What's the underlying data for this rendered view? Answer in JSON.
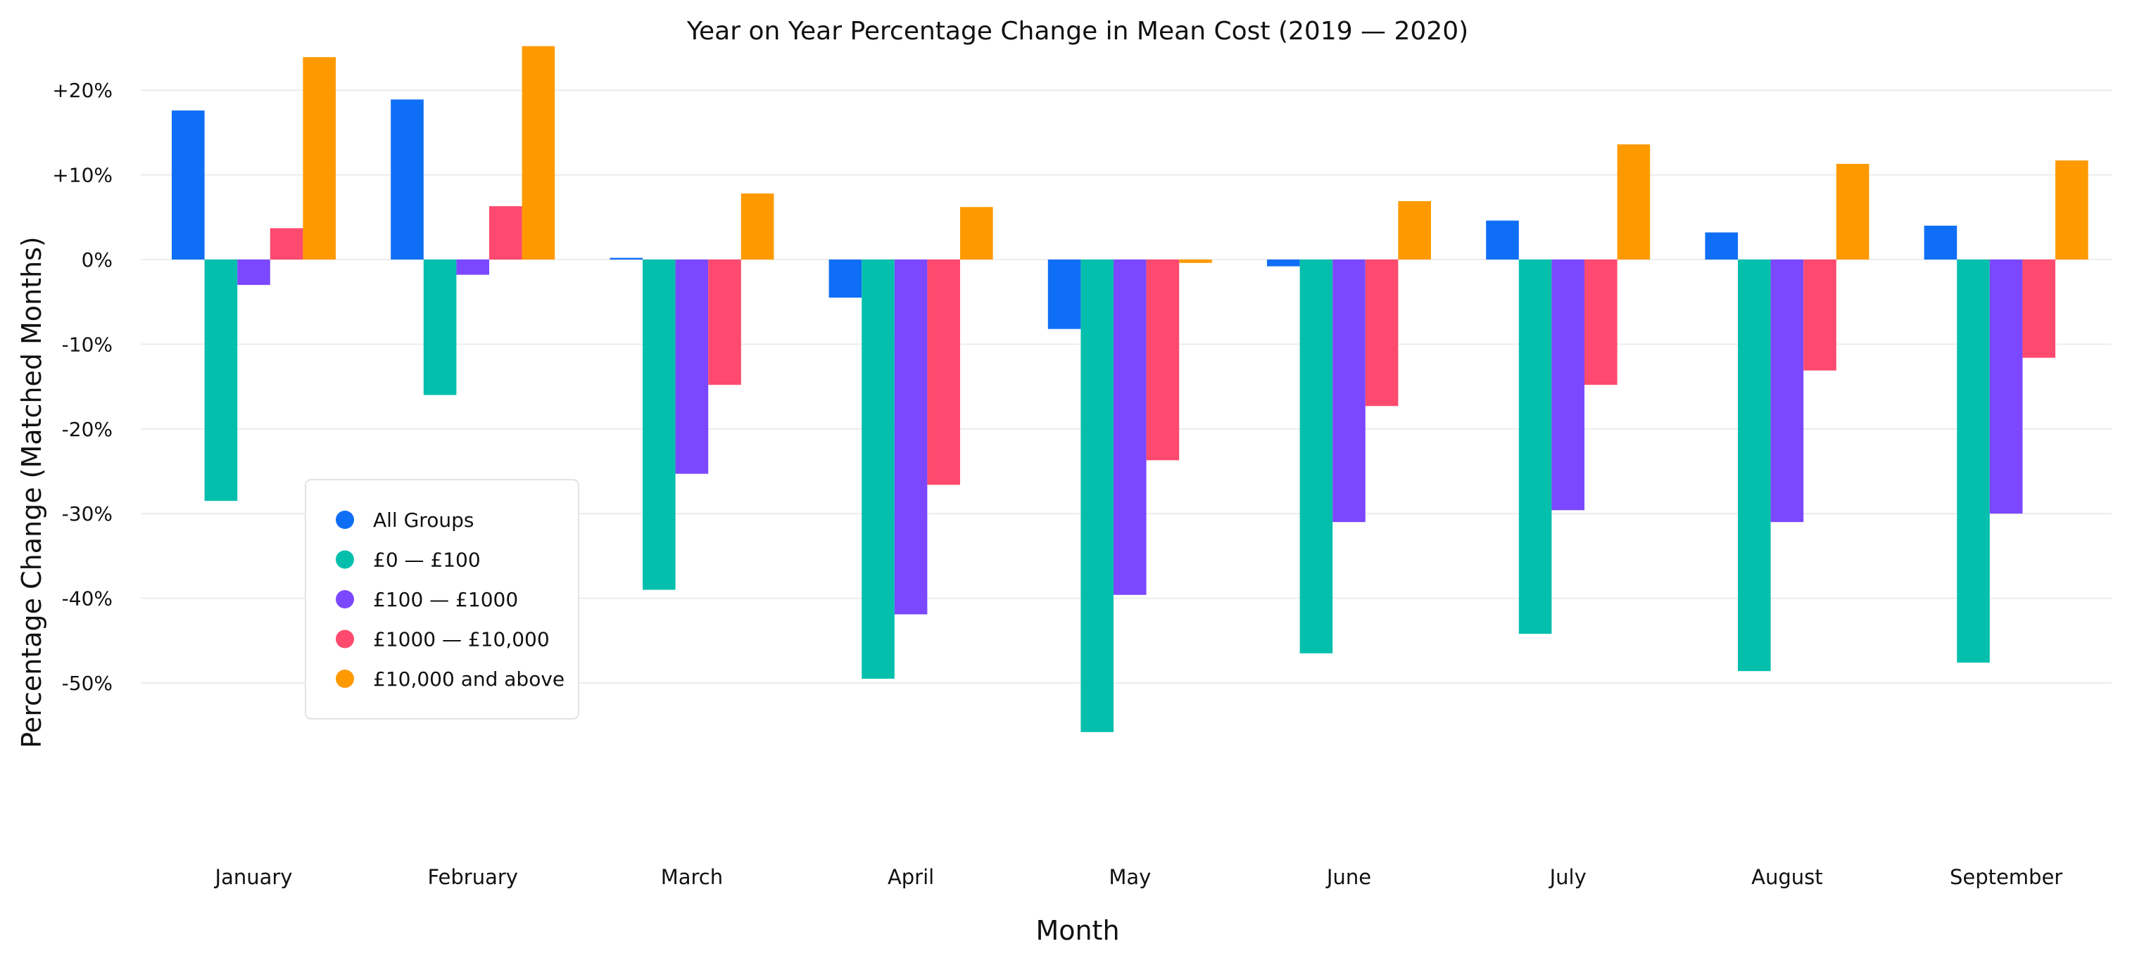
{
  "chart_data": {
    "type": "bar",
    "title": "Year on Year Percentage Change in Mean Cost (2019 — 2020)",
    "xlabel": "Month",
    "ylabel": "Percentage Change (Matched Months)",
    "categories": [
      "January",
      "February",
      "March",
      "April",
      "May",
      "June",
      "July",
      "August",
      "September"
    ],
    "y_ticks": [
      {
        "value": 20,
        "label": "+20%"
      },
      {
        "value": 10,
        "label": "+10%"
      },
      {
        "value": 0,
        "label": "0%"
      },
      {
        "value": -10,
        "label": "-10%"
      },
      {
        "value": -20,
        "label": "-20%"
      },
      {
        "value": -30,
        "label": "-30%"
      },
      {
        "value": -40,
        "label": "-40%"
      },
      {
        "value": -50,
        "label": "-50%"
      }
    ],
    "ylim": [
      -60,
      25
    ],
    "grid": true,
    "legend_position": "bottom-left",
    "series": [
      {
        "name": "All Groups",
        "color": "#0f6ef6",
        "values": [
          17.6,
          18.9,
          0.2,
          -4.5,
          -8.2,
          -0.8,
          4.6,
          3.2,
          4.0
        ]
      },
      {
        "name": "£0 — £100",
        "color": "#05bfad",
        "values": [
          -28.5,
          -16.0,
          -39.0,
          -49.5,
          -55.8,
          -46.5,
          -44.2,
          -48.6,
          -47.6
        ]
      },
      {
        "name": "£100 — £1000",
        "color": "#7b48ff",
        "values": [
          -3.0,
          -1.8,
          -25.3,
          -41.9,
          -39.6,
          -31.0,
          -29.6,
          -31.0,
          -30.0
        ]
      },
      {
        "name": "£1000 — £10,000",
        "color": "#fd4a6e",
        "values": [
          3.7,
          6.3,
          -14.8,
          -26.6,
          -23.7,
          -17.3,
          -14.8,
          -13.1,
          -11.6
        ]
      },
      {
        "name": "£10,000 and above",
        "color": "#fe9a00",
        "values": [
          23.9,
          25.2,
          7.8,
          6.2,
          -0.4,
          6.9,
          13.6,
          11.3,
          11.7
        ]
      }
    ]
  }
}
